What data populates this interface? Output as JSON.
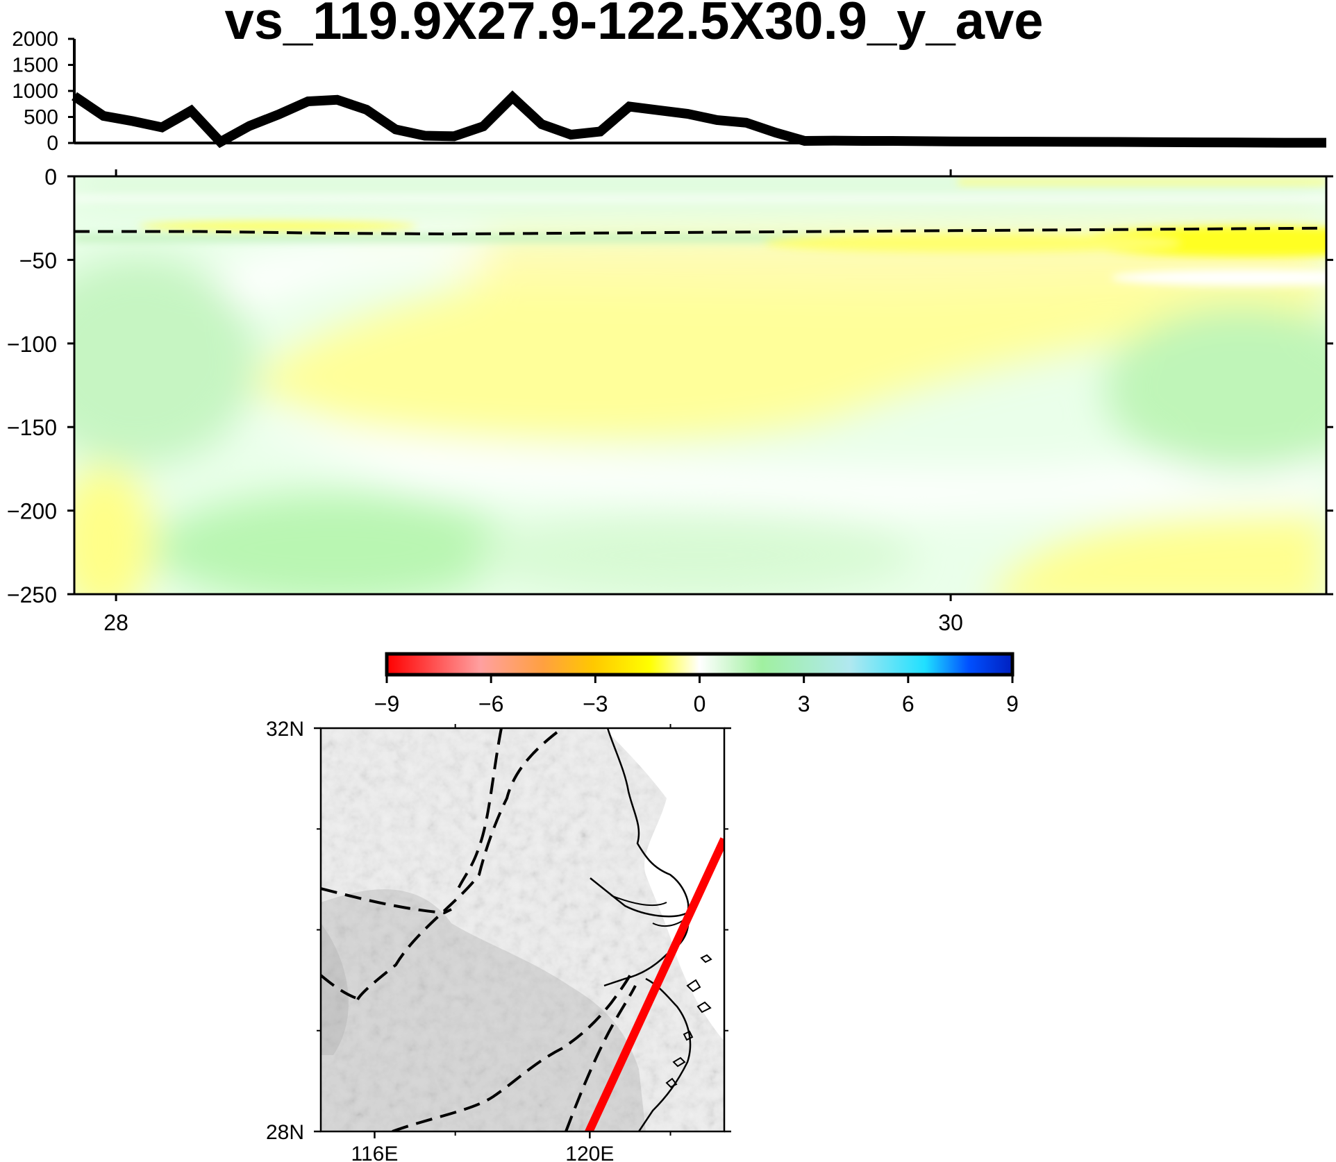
{
  "title": "vs_119.9X27.9-122.5X30.9_y_ave",
  "chart_data": [
    {
      "type": "line",
      "panel": "topography",
      "x": [
        27.9,
        27.97,
        28.04,
        28.11,
        28.18,
        28.25,
        28.32,
        28.39,
        28.46,
        28.53,
        28.6,
        28.67,
        28.74,
        28.81,
        28.88,
        28.95,
        29.02,
        29.09,
        29.16,
        29.23,
        29.3,
        29.37,
        29.44,
        29.51,
        29.58,
        29.65,
        29.72,
        29.79,
        29.86,
        29.93,
        30.0,
        30.2,
        30.4,
        30.6,
        30.8,
        30.9
      ],
      "values": [
        900,
        520,
        420,
        300,
        620,
        20,
        330,
        550,
        800,
        830,
        640,
        260,
        140,
        130,
        320,
        880,
        360,
        160,
        220,
        700,
        630,
        560,
        440,
        390,
        200,
        40,
        45,
        40,
        40,
        35,
        30,
        25,
        20,
        12,
        6,
        5
      ],
      "ylim": [
        0,
        2000
      ],
      "yticks": [
        "0",
        "500",
        "1000",
        "1500",
        "2000"
      ]
    },
    {
      "type": "heatmap",
      "panel": "vs-section",
      "xlim": [
        27.9,
        30.9
      ],
      "ylim": [
        -250,
        0
      ],
      "xticks": [
        "28",
        "30"
      ],
      "yticks": [
        "0",
        "−50",
        "−100",
        "−150",
        "−200",
        "−250"
      ],
      "moho_depth": [
        33,
        33,
        34,
        34.5,
        34,
        33.5,
        33,
        32.5,
        32,
        31.5,
        31
      ],
      "colorbar": {
        "range": [
          -9,
          9
        ],
        "ticks": [
          "−9",
          "−6",
          "−3",
          "0",
          "3",
          "6",
          "9"
        ],
        "colors": [
          "#ff0000",
          "#ffa0a0",
          "#ffa040",
          "#ffc800",
          "#ffff00",
          "#ffffff",
          "#a0f0a0",
          "#b0e8f0",
          "#20e0ff",
          "#0050ff",
          "#0020c0"
        ]
      }
    },
    {
      "type": "map",
      "panel": "location-map",
      "lon_range": [
        115.0,
        122.5
      ],
      "lat_range": [
        28.0,
        32.0
      ],
      "xticks": [
        "116E",
        "120E"
      ],
      "yticks": [
        "28N",
        "32N"
      ],
      "profile": {
        "start": [
          119.9,
          27.9
        ],
        "end": [
          122.5,
          30.9
        ],
        "color": "#ff0000"
      }
    }
  ]
}
